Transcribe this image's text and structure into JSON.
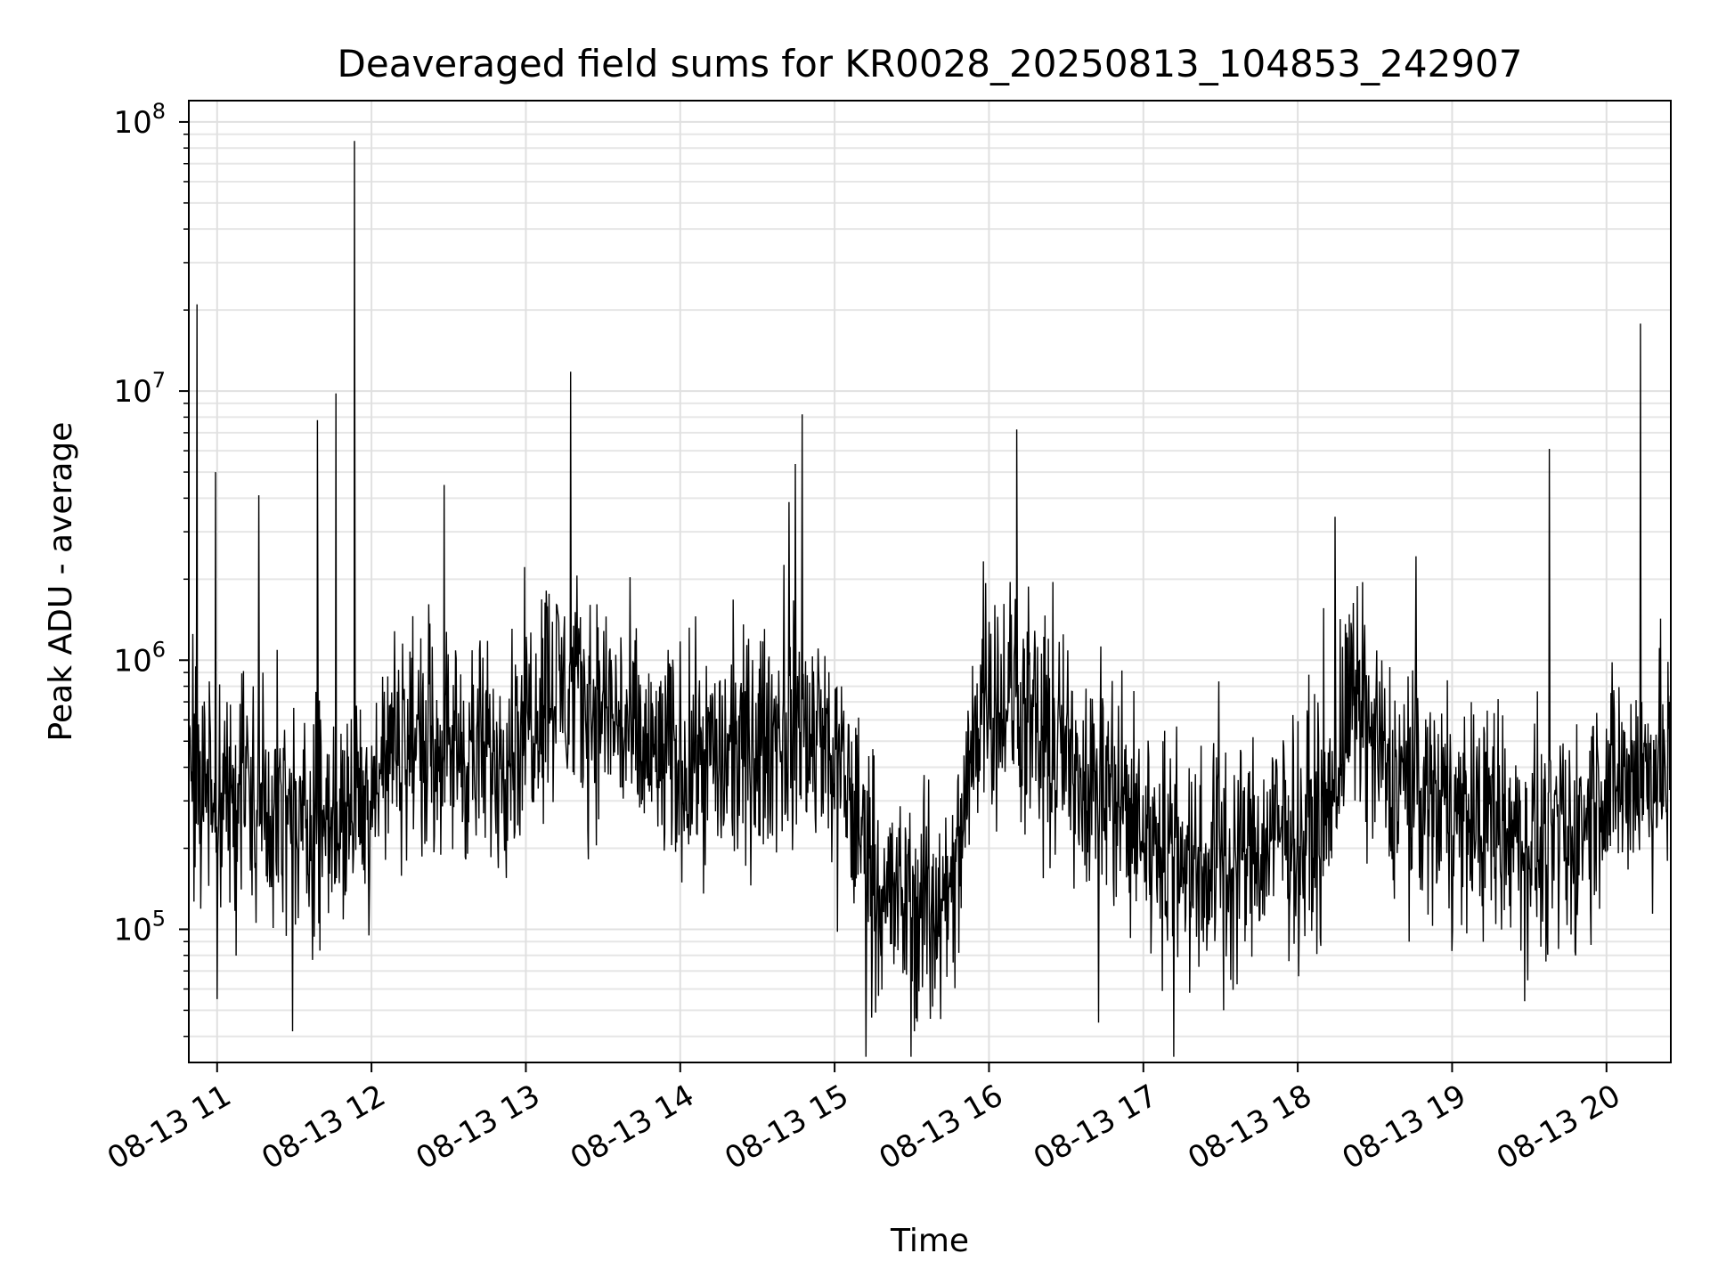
{
  "chart_data": {
    "type": "line",
    "title": "Deaveraged field sums for KR0028_20250813_104853_242907",
    "xlabel": "Time",
    "ylabel": "Peak ADU - average",
    "x_range": [
      "2025-08-13 10:49",
      "2025-08-13 20:25"
    ],
    "ylim": [
      32000,
      120000000
    ],
    "y_scale": "log",
    "grid": true,
    "line_color": "#000000",
    "x_ticks": [
      "08-13 11",
      "08-13 12",
      "08-13 13",
      "08-13 14",
      "08-13 15",
      "08-13 16",
      "08-13 17",
      "08-13 18",
      "08-13 19",
      "08-13 20"
    ],
    "x_tick_hours": [
      11,
      12,
      13,
      14,
      15,
      16,
      17,
      18,
      19,
      20
    ],
    "y_ticks": [
      {
        "value": 100000,
        "base": "10",
        "exp": "5"
      },
      {
        "value": 1000000,
        "base": "10",
        "exp": "6"
      },
      {
        "value": 10000000,
        "base": "10",
        "exp": "7"
      },
      {
        "value": 100000000,
        "base": "10",
        "exp": "8"
      }
    ],
    "series": [
      {
        "x_unit": "hour of day (2025-08-13)",
        "x": [
          10.82,
          10.98,
          11.15,
          11.35,
          11.55,
          11.75,
          11.95,
          12.15,
          12.35,
          12.55,
          12.75,
          12.95,
          13.15,
          13.35,
          13.55,
          13.75,
          13.95,
          14.15,
          14.35,
          14.55,
          14.75,
          14.95,
          15.15,
          15.35,
          15.55,
          15.75,
          15.95,
          16.15,
          16.35,
          16.55,
          16.75,
          16.95,
          17.15,
          17.35,
          17.55,
          17.75,
          17.95,
          18.15,
          18.35,
          18.55,
          18.75,
          18.95,
          19.15,
          19.35,
          19.55,
          19.75,
          19.95,
          20.15,
          20.4
        ],
        "y": [
          450000,
          300000,
          350000,
          280000,
          230000,
          260000,
          300000,
          480000,
          550000,
          480000,
          420000,
          550000,
          850000,
          700000,
          650000,
          450000,
          420000,
          450000,
          420000,
          500000,
          600000,
          480000,
          250000,
          130000,
          120000,
          110000,
          800000,
          700000,
          500000,
          420000,
          350000,
          250000,
          200000,
          180000,
          190000,
          200000,
          230000,
          250000,
          700000,
          400000,
          350000,
          280000,
          250000,
          230000,
          220000,
          200000,
          320000,
          380000,
          400000
        ]
      }
    ],
    "spikes": [
      {
        "x": 10.87,
        "y": 21000000
      },
      {
        "x": 10.99,
        "y": 5000000
      },
      {
        "x": 11.27,
        "y": 4100000
      },
      {
        "x": 11.65,
        "y": 7800000
      },
      {
        "x": 11.77,
        "y": 9800000
      },
      {
        "x": 11.89,
        "y": 85000000
      },
      {
        "x": 13.29,
        "y": 11800000
      },
      {
        "x": 14.79,
        "y": 8200000
      },
      {
        "x": 16.18,
        "y": 7200000
      },
      {
        "x": 18.42,
        "y": 1950000
      },
      {
        "x": 19.63,
        "y": 6100000
      },
      {
        "x": 20.22,
        "y": 17800000
      }
    ],
    "dips": [
      {
        "x": 11.0,
        "y": 55000
      },
      {
        "x": 15.24,
        "y": 47000
      },
      {
        "x": 16.71,
        "y": 45000
      },
      {
        "x": 17.52,
        "y": 50000
      },
      {
        "x": 19.47,
        "y": 54000
      }
    ]
  }
}
